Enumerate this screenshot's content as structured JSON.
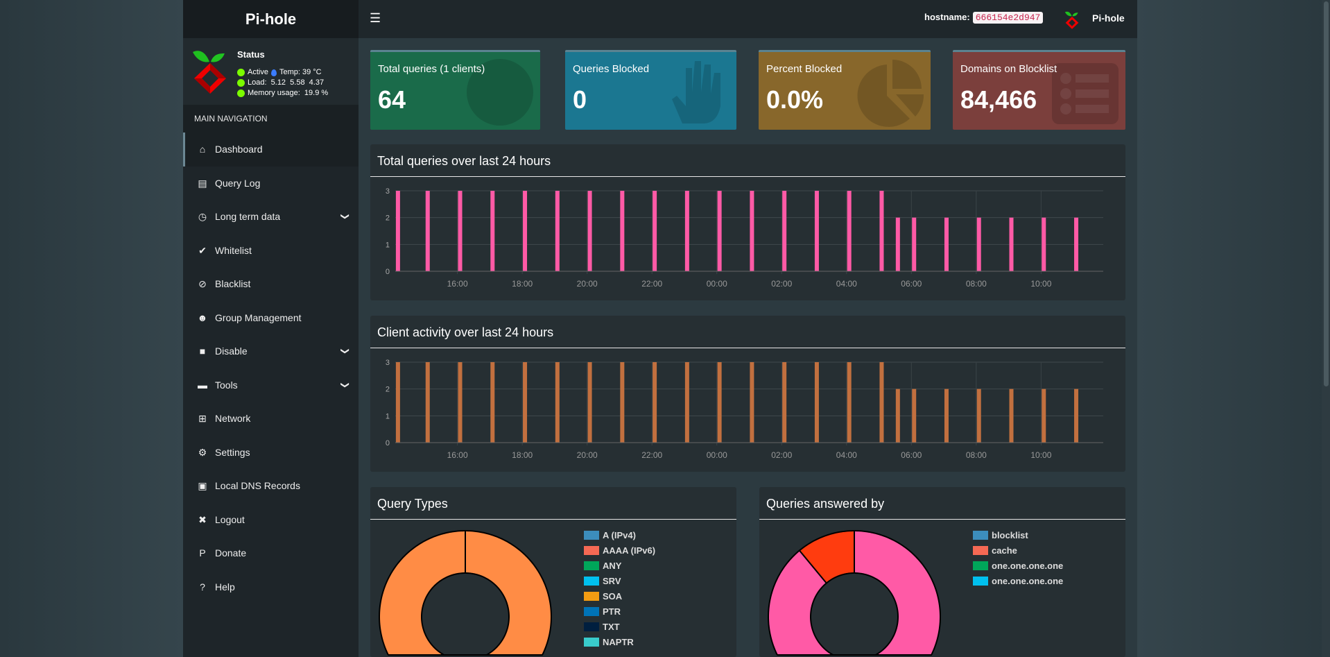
{
  "app": {
    "logo_pi": "Pi-",
    "logo_hole": "hole",
    "brand": "Pi-hole"
  },
  "status": {
    "title": "Status",
    "active": "Active",
    "temp": "Temp: 39 °C",
    "load": "Load:  5.12  5.58  4.37",
    "memory": "Memory usage:  19.9 %"
  },
  "sidebar": {
    "header": "MAIN NAVIGATION",
    "items": [
      {
        "label": "Dashboard",
        "icon": "home-icon",
        "glyph": "⌂",
        "active": true
      },
      {
        "label": "Query Log",
        "icon": "file-icon",
        "glyph": "▤"
      },
      {
        "label": "Long term data",
        "icon": "clock-icon",
        "glyph": "◷",
        "chevron": true
      },
      {
        "label": "Whitelist",
        "icon": "check-circle-icon",
        "glyph": "✔"
      },
      {
        "label": "Blacklist",
        "icon": "ban-icon",
        "glyph": "⊘"
      },
      {
        "label": "Group Management",
        "icon": "users-cog-icon",
        "glyph": "☻"
      },
      {
        "label": "Disable",
        "icon": "stop-icon",
        "glyph": "■",
        "chevron": true
      },
      {
        "label": "Tools",
        "icon": "folder-icon",
        "glyph": "▬",
        "chevron": true
      },
      {
        "label": "Network",
        "icon": "network-icon",
        "glyph": "⊞"
      },
      {
        "label": "Settings",
        "icon": "cogs-icon",
        "glyph": "⚙"
      },
      {
        "label": "Local DNS Records",
        "icon": "address-book-icon",
        "glyph": "▣"
      },
      {
        "label": "Logout",
        "icon": "user-times-icon",
        "glyph": "✖"
      },
      {
        "label": "Donate",
        "icon": "paypal-icon",
        "glyph": "P"
      },
      {
        "label": "Help",
        "icon": "question-circle-icon",
        "glyph": "?"
      }
    ]
  },
  "header": {
    "menu_icon": "bars-icon",
    "hostname_label": "hostname:",
    "hostname": "666154e2d947",
    "brand": "Pi-hole"
  },
  "cards": [
    {
      "label": "Total queries (1 clients)",
      "value": "64",
      "color": "#1a6b4a",
      "icon": "globe-icon"
    },
    {
      "label": "Queries Blocked",
      "value": "0",
      "color": "#1b7791",
      "icon": "hand-icon"
    },
    {
      "label": "Percent Blocked",
      "value": "0.0%",
      "color": "#88672b",
      "icon": "pie-chart-icon"
    },
    {
      "label": "Domains on Blocklist",
      "value": "84,466",
      "color": "#7b3f3c",
      "icon": "list-icon"
    }
  ],
  "chart_data": [
    {
      "type": "bar",
      "title": "Total queries over last 24 hours",
      "color": "#ff5aa6",
      "xlim": [
        "14:05",
        "11:55"
      ],
      "ylim": [
        0,
        3
      ],
      "yticks": [
        0,
        1,
        2,
        3
      ],
      "xticks": [
        "16:00",
        "18:00",
        "20:00",
        "22:00",
        "00:00",
        "02:00",
        "04:00",
        "06:00",
        "08:00",
        "10:00"
      ],
      "x": [
        "14:10",
        "15:05",
        "16:05",
        "17:05",
        "18:05",
        "19:05",
        "20:05",
        "21:05",
        "22:05",
        "23:05",
        "00:05",
        "01:05",
        "02:05",
        "03:05",
        "04:05",
        "05:05",
        "05:35",
        "06:05",
        "07:05",
        "08:05",
        "09:05",
        "10:05",
        "11:05"
      ],
      "values": [
        3,
        3,
        3,
        3,
        3,
        3,
        3,
        3,
        3,
        3,
        3,
        3,
        3,
        3,
        3,
        3,
        2,
        2,
        2,
        2,
        2,
        2,
        2
      ]
    },
    {
      "type": "bar",
      "title": "Client activity over last 24 hours",
      "color": "#c2703f",
      "xlim": [
        "14:05",
        "11:55"
      ],
      "ylim": [
        0,
        3
      ],
      "yticks": [
        0,
        1,
        2,
        3
      ],
      "xticks": [
        "16:00",
        "18:00",
        "20:00",
        "22:00",
        "00:00",
        "02:00",
        "04:00",
        "06:00",
        "08:00",
        "10:00"
      ],
      "x": [
        "14:10",
        "15:05",
        "16:05",
        "17:05",
        "18:05",
        "19:05",
        "20:05",
        "21:05",
        "22:05",
        "23:05",
        "00:05",
        "01:05",
        "02:05",
        "03:05",
        "04:05",
        "05:05",
        "05:35",
        "06:05",
        "07:05",
        "08:05",
        "09:05",
        "10:05",
        "11:05"
      ],
      "values": [
        3,
        3,
        3,
        3,
        3,
        3,
        3,
        3,
        3,
        3,
        3,
        3,
        3,
        3,
        3,
        3,
        2,
        2,
        2,
        2,
        2,
        2,
        2
      ]
    },
    {
      "type": "pie",
      "title": "Query Types",
      "slices": [
        {
          "value": 100,
          "color": "#ff8c45"
        }
      ],
      "legend": [
        {
          "label": "A (IPv4)",
          "color": "#3c8dbc"
        },
        {
          "label": "AAAA (IPv6)",
          "color": "#f56954"
        },
        {
          "label": "ANY",
          "color": "#00a65a"
        },
        {
          "label": "SRV",
          "color": "#00c0ef"
        },
        {
          "label": "SOA",
          "color": "#f39c12"
        },
        {
          "label": "PTR",
          "color": "#0073b7"
        },
        {
          "label": "TXT",
          "color": "#001f3f"
        },
        {
          "label": "NAPTR",
          "color": "#39cccc"
        }
      ]
    },
    {
      "type": "pie",
      "title": "Queries answered by",
      "slices": [
        {
          "value": 89,
          "color": "#ff5aa6"
        },
        {
          "value": 11,
          "color": "#ff3c0f"
        }
      ],
      "legend": [
        {
          "label": "blocklist",
          "color": "#3c8dbc"
        },
        {
          "label": "cache",
          "color": "#f56954"
        },
        {
          "label": "one.one.one.one",
          "color": "#00a65a"
        },
        {
          "label": "one.one.one.one",
          "color": "#00c0ef"
        }
      ]
    }
  ]
}
